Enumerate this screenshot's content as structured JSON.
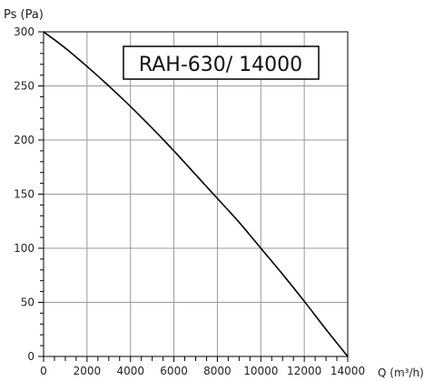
{
  "chart_data": {
    "type": "line",
    "title": "RAH-630/ 14000",
    "ylabel": "Ps (Pa)",
    "xlabel": "Q (m³/h)",
    "xlim": [
      0,
      14000
    ],
    "ylim": [
      0,
      300
    ],
    "x_ticks": [
      0,
      2000,
      4000,
      6000,
      8000,
      10000,
      12000,
      14000
    ],
    "y_ticks": [
      0,
      50,
      100,
      150,
      200,
      250,
      300
    ],
    "x_tick_labels": [
      "0",
      "2000",
      "4000",
      "6000",
      "8000",
      "10000",
      "12000",
      "14000"
    ],
    "y_tick_labels": [
      "0",
      "50",
      "100",
      "150",
      "200",
      "250",
      "300"
    ],
    "grid": true,
    "series": [
      {
        "x": [
          0,
          1000,
          2000,
          3000,
          4000,
          5000,
          6000,
          7000,
          8000,
          9000,
          10000,
          11000,
          12000,
          13000,
          14000
        ],
        "y": [
          300,
          285,
          268,
          250,
          231,
          211,
          190,
          168,
          146,
          124,
          100,
          76,
          51,
          25,
          0
        ]
      }
    ],
    "color": "#000000"
  }
}
